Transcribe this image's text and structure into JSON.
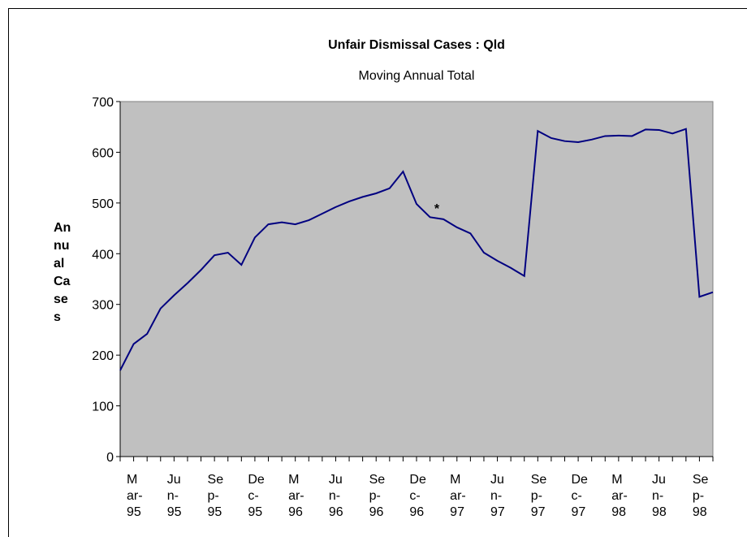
{
  "chart_data": {
    "type": "line",
    "title": "Unfair Dismissal Cases : Qld",
    "subtitle": "Moving Annual Total",
    "y_label": "Annual Cases",
    "categories": [
      "Mar-95",
      null,
      null,
      "Jun-95",
      null,
      null,
      "Sep-95",
      null,
      null,
      "Dec-95",
      null,
      null,
      "Mar-96",
      null,
      null,
      "Jun-96",
      null,
      null,
      "Sep-96",
      null,
      null,
      "Dec-96",
      null,
      null,
      "Mar-97",
      null,
      null,
      "Jun-97",
      null,
      null,
      "Sep-97",
      null,
      null,
      "Dec-97",
      null,
      null,
      "Mar-98",
      null,
      null,
      "Jun-98",
      null,
      null,
      "Sep-98",
      null,
      null
    ],
    "series": [
      {
        "name": "Annual Cases",
        "color": "#000080",
        "values": [
          170,
          222,
          242,
          292,
          318,
          342,
          368,
          397,
          402,
          378,
          432,
          458,
          462,
          458,
          466,
          479,
          492,
          503,
          512,
          519,
          529,
          562,
          498,
          472,
          468,
          452,
          440,
          402,
          386,
          372,
          356,
          642,
          628,
          622,
          620,
          625,
          632,
          633,
          632,
          645,
          644,
          637,
          646,
          315,
          324
        ]
      }
    ],
    "annotation": "*",
    "ylim": [
      0,
      700
    ],
    "yticks": [
      0,
      100,
      200,
      300,
      400,
      500,
      600,
      700
    ],
    "grid": false
  }
}
